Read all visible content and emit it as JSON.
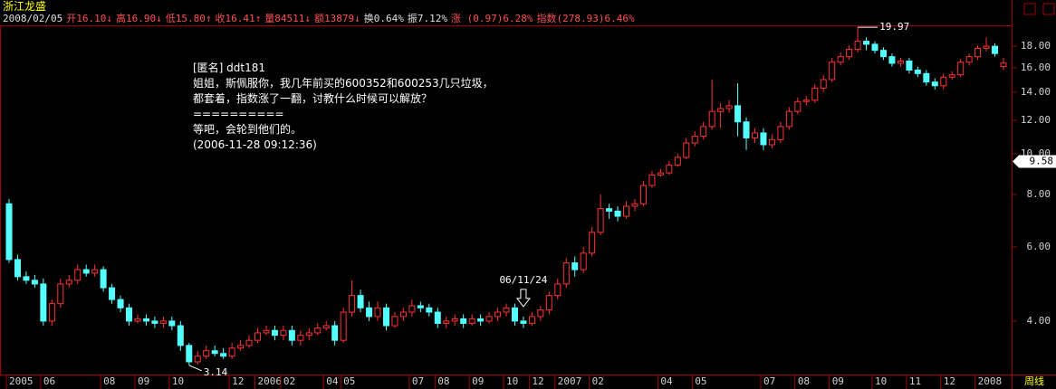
{
  "header": {
    "stock_name": "浙江龙盛",
    "items": [
      "2008/02/05",
      "开16.10↓",
      "高16.90↓",
      "低15.80↑",
      "收16.41↑",
      "量84511↓",
      "额13879↓",
      "换0.64%",
      "振7.12%",
      "涨 (0.97)6.28%",
      "指数(278.93)6.46%"
    ]
  },
  "comment": {
    "lines": [
      "[匿名] ddt181",
      "姐姐，斯佩服你，我几年前买的600352和600253几只垃圾，",
      "都套着，指数涨了一翻，讨教什么时候可以解放？",
      "==========",
      "等吧，会轮到他们的。",
      "(2006-11-28 09:12:36)"
    ]
  },
  "chart_data": {
    "type": "candlestick",
    "log_scale": true,
    "up_color": "#ff3232",
    "down_color": "#54ffff",
    "categories": [
      "2005",
      null,
      null,
      null,
      "06",
      null,
      null,
      null,
      null,
      null,
      null,
      "08",
      null,
      null,
      null,
      "09",
      null,
      null,
      null,
      "10",
      null,
      null,
      null,
      null,
      null,
      null,
      "12",
      null,
      null,
      "2006",
      null,
      null,
      "02",
      null,
      null,
      null,
      null,
      "04",
      null,
      "05",
      null,
      null,
      null,
      null,
      null,
      null,
      null,
      "07",
      null,
      null,
      "08",
      null,
      null,
      null,
      "09",
      null,
      null,
      null,
      "10",
      null,
      null,
      "12",
      null,
      null,
      "2007",
      null,
      null,
      null,
      "02",
      null,
      null,
      null,
      null,
      null,
      null,
      null,
      "04",
      null,
      null,
      null,
      "05",
      null,
      null,
      null,
      null,
      null,
      null,
      null,
      "07",
      null,
      null,
      null,
      "08",
      null,
      null,
      null,
      "09",
      null,
      null,
      null,
      null,
      "10",
      null,
      null,
      null,
      "11",
      null,
      null,
      null,
      "12",
      null,
      null,
      null,
      "2008",
      null,
      null,
      null
    ],
    "open": [
      7.6,
      5.6,
      5.1,
      5.0,
      4.9,
      4.0,
      4.4,
      4.9,
      5.0,
      5.3,
      5.2,
      5.3,
      4.8,
      4.5,
      4.3,
      4.0,
      4.05,
      4.0,
      3.95,
      4.0,
      3.9,
      3.5,
      3.2,
      3.3,
      3.4,
      3.35,
      3.3,
      3.45,
      3.5,
      3.6,
      3.75,
      3.8,
      3.7,
      3.8,
      3.6,
      3.7,
      3.75,
      3.85,
      3.9,
      3.6,
      4.2,
      4.6,
      4.3,
      4.1,
      4.3,
      3.9,
      4.1,
      4.2,
      4.35,
      4.3,
      4.2,
      3.95,
      4.0,
      4.05,
      3.95,
      4.05,
      4.0,
      4.1,
      4.2,
      4.3,
      4.0,
      3.95,
      4.1,
      4.25,
      4.6,
      4.9,
      5.5,
      5.3,
      5.8,
      6.5,
      7.4,
      7.3,
      7.1,
      7.5,
      7.6,
      8.4,
      8.9,
      9.0,
      9.4,
      9.8,
      10.6,
      11.0,
      11.6,
      12.6,
      12.8,
      13.0,
      11.9,
      10.9,
      11.2,
      10.5,
      10.8,
      11.6,
      12.6,
      13.3,
      13.4,
      14.3,
      15.0,
      16.5,
      17.0,
      17.7,
      18.5,
      18.2,
      17.6,
      17.0,
      16.4,
      16.6,
      15.8,
      15.5,
      14.8,
      14.5,
      15.2,
      15.4,
      16.5,
      17.0,
      17.8,
      18.0,
      16.1
    ],
    "high": [
      7.8,
      5.75,
      5.25,
      5.15,
      5.05,
      4.5,
      5.05,
      5.15,
      5.45,
      5.45,
      5.45,
      5.4,
      4.9,
      4.6,
      4.4,
      4.15,
      4.15,
      4.1,
      4.1,
      4.1,
      4.0,
      3.55,
      3.4,
      3.5,
      3.5,
      3.45,
      3.55,
      3.6,
      3.7,
      3.85,
      3.9,
      3.9,
      3.9,
      3.9,
      3.8,
      3.85,
      3.95,
      4.0,
      4.0,
      4.3,
      5.0,
      4.75,
      4.45,
      4.45,
      4.4,
      4.2,
      4.3,
      4.5,
      4.45,
      4.4,
      4.3,
      4.1,
      4.15,
      4.15,
      4.15,
      4.15,
      4.2,
      4.3,
      4.4,
      4.4,
      4.1,
      4.2,
      4.35,
      4.7,
      5.05,
      5.65,
      5.7,
      6.0,
      6.7,
      8.0,
      7.6,
      7.5,
      7.7,
      7.8,
      8.6,
      9.1,
      9.2,
      9.6,
      10.0,
      10.9,
      11.3,
      11.9,
      15.0,
      13.2,
      13.4,
      14.7,
      12.2,
      11.5,
      11.5,
      11.1,
      11.9,
      12.9,
      13.6,
      13.7,
      14.6,
      15.4,
      16.9,
      17.4,
      18.1,
      19.97,
      18.9,
      18.5,
      17.9,
      17.3,
      16.9,
      16.9,
      16.1,
      15.8,
      15.1,
      15.5,
      15.7,
      16.8,
      17.3,
      18.1,
      18.9,
      18.3,
      16.9
    ],
    "low": [
      5.5,
      5.0,
      4.9,
      4.8,
      3.9,
      3.9,
      4.3,
      4.8,
      4.9,
      5.1,
      5.1,
      4.7,
      4.4,
      4.2,
      3.9,
      3.95,
      3.9,
      3.85,
      3.85,
      3.8,
      3.4,
      3.14,
      3.15,
      3.25,
      3.3,
      3.25,
      3.25,
      3.4,
      3.45,
      3.55,
      3.7,
      3.6,
      3.6,
      3.5,
      3.5,
      3.6,
      3.7,
      3.8,
      3.5,
      3.55,
      4.1,
      4.2,
      4.0,
      4.0,
      3.8,
      3.85,
      4.0,
      4.1,
      4.2,
      4.1,
      3.85,
      3.85,
      3.9,
      3.85,
      3.9,
      3.9,
      3.95,
      4.0,
      4.1,
      3.9,
      3.85,
      3.9,
      4.0,
      4.15,
      4.5,
      4.8,
      5.1,
      5.2,
      5.7,
      6.4,
      7.0,
      6.9,
      7.0,
      7.3,
      7.5,
      8.3,
      8.8,
      8.9,
      9.3,
      9.7,
      10.4,
      10.8,
      11.4,
      11.5,
      12.5,
      11.0,
      10.2,
      10.6,
      10.2,
      10.3,
      10.6,
      11.4,
      12.4,
      13.0,
      13.2,
      14.0,
      14.8,
      16.2,
      16.7,
      17.4,
      17.6,
      17.3,
      16.7,
      16.1,
      16.1,
      15.5,
      15.2,
      14.5,
      14.2,
      14.2,
      15.0,
      15.2,
      16.2,
      16.7,
      17.5,
      17.0,
      15.8
    ],
    "close": [
      5.6,
      5.1,
      5.0,
      4.9,
      4.0,
      4.4,
      4.9,
      5.0,
      5.3,
      5.2,
      5.3,
      4.8,
      4.5,
      4.3,
      4.0,
      4.05,
      4.0,
      3.95,
      4.0,
      3.9,
      3.5,
      3.2,
      3.3,
      3.4,
      3.35,
      3.3,
      3.45,
      3.5,
      3.6,
      3.75,
      3.8,
      3.7,
      3.8,
      3.6,
      3.7,
      3.75,
      3.85,
      3.9,
      3.6,
      4.2,
      4.6,
      4.3,
      4.1,
      4.3,
      3.9,
      4.1,
      4.2,
      4.35,
      4.3,
      4.2,
      3.95,
      4.0,
      4.05,
      3.95,
      4.05,
      4.0,
      4.1,
      4.2,
      4.3,
      4.0,
      3.95,
      4.1,
      4.25,
      4.6,
      4.9,
      5.5,
      5.3,
      5.8,
      6.5,
      7.4,
      7.3,
      7.1,
      7.5,
      7.6,
      8.4,
      8.9,
      9.0,
      9.4,
      9.8,
      10.6,
      11.0,
      11.6,
      12.6,
      12.8,
      13.0,
      11.9,
      10.9,
      11.2,
      10.5,
      10.8,
      11.6,
      12.6,
      13.3,
      13.4,
      14.3,
      15.0,
      16.5,
      17.0,
      17.7,
      18.5,
      18.2,
      17.6,
      17.0,
      16.4,
      16.6,
      15.8,
      15.5,
      14.8,
      14.5,
      15.2,
      15.4,
      16.5,
      17.0,
      17.8,
      18.0,
      17.3,
      16.41
    ],
    "ylim": [
      3.0,
      21.0
    ],
    "yticks": [
      {
        "value": 4,
        "label": "4.00"
      },
      {
        "value": 6,
        "label": "6.00"
      },
      {
        "value": 8,
        "label": "8.00"
      },
      {
        "value": 10,
        "label": "10.00"
      },
      {
        "value": 12,
        "label": "12.00"
      },
      {
        "value": 14,
        "label": "14.00"
      },
      {
        "value": 16,
        "label": "16.00"
      },
      {
        "value": 18,
        "label": "18.00"
      }
    ],
    "cursor_value": 9.58,
    "date_marker": "06/11/24",
    "period_label": "周线"
  }
}
